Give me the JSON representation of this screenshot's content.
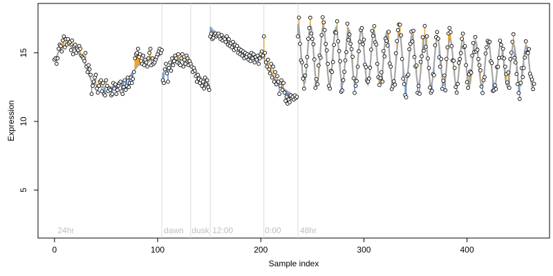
{
  "chart_data": {
    "type": "scatter",
    "title": "",
    "xlabel": "Sample index",
    "ylabel": "Expression",
    "xlim": [
      -16,
      480
    ],
    "ylim": [
      1.5,
      18.6
    ],
    "xticks": [
      0,
      100,
      200,
      300,
      400
    ],
    "yticks": [
      5,
      10,
      15
    ],
    "grid": false,
    "legend": "none",
    "colors": {
      "fit_line": "#a6a6a6",
      "residual_up": "#f5a623",
      "residual_down": "#6a97d8",
      "point_fill": "#ffffff",
      "point_stroke": "#000000",
      "separator": "#d9d9d9",
      "annotation": "#bfbfbf"
    },
    "segment_boundaries": [
      104,
      132,
      151,
      203,
      236
    ],
    "annotations": [
      {
        "x": 3,
        "text": "24hr"
      },
      {
        "x": 106,
        "text": "dawn"
      },
      {
        "x": 133,
        "text": "dusk"
      },
      {
        "x": 153,
        "text": "12:00"
      },
      {
        "x": 204,
        "text": "0:00"
      },
      {
        "x": 238,
        "text": "48hr"
      }
    ],
    "segments": [
      {
        "name": "24hr",
        "x_start": 0,
        "observed": [
          14.5,
          14.6,
          14.2,
          14.6,
          15.3,
          15.6,
          15.5,
          15.1,
          15.9,
          16.2,
          15.4,
          16.0,
          15.6,
          16.0,
          15.7,
          15.8,
          15.2,
          15.9,
          14.9,
          15.5,
          15.6,
          15.0,
          15.3,
          15.2,
          15.5,
          15.3,
          14.8,
          14.7,
          14.6,
          14.4,
          15.0,
          14.0,
          13.6,
          14.1,
          13.8,
          13.4,
          12.0,
          12.6,
          12.9,
          13.2,
          13.4,
          12.4,
          12.1,
          12.6,
          12.9,
          13.0,
          12.2,
          12.8,
          12.0,
          11.9,
          13.0,
          12.6,
          12.2,
          12.4,
          12.3,
          11.9,
          12.0,
          12.8,
          12.4,
          12.7,
          12.0,
          12.3,
          12.6,
          12.8,
          12.9,
          12.2,
          12.0,
          12.5,
          13.0,
          12.3,
          12.6,
          13.2,
          12.5,
          12.8,
          13.2,
          12.8,
          13.1,
          13.6,
          14.6,
          14.9,
          15.0,
          15.3,
          14.7,
          14.9,
          14.4,
          14.2,
          14.8,
          14.1,
          14.5,
          14.3,
          14.0,
          14.6,
          15.0,
          15.3,
          14.1,
          14.6,
          14.2,
          14.3,
          14.5,
          14.7,
          14.9,
          15.1,
          15.3,
          15.0,
          15.2
        ],
        "fitted": [
          14.5,
          14.6,
          14.7,
          14.9,
          15.1,
          15.2,
          15.3,
          15.3,
          15.4,
          15.5,
          15.5,
          15.6,
          15.6,
          15.6,
          15.6,
          15.5,
          15.5,
          15.4,
          15.4,
          15.3,
          15.3,
          15.2,
          15.1,
          15.0,
          14.9,
          14.8,
          14.7,
          14.6,
          14.5,
          14.3,
          14.1,
          13.9,
          13.7,
          13.5,
          13.3,
          13.1,
          12.9,
          12.8,
          12.8,
          12.7,
          12.7,
          12.6,
          12.6,
          12.6,
          12.5,
          12.5,
          12.5,
          12.5,
          12.5,
          12.5,
          12.5,
          12.5,
          12.5,
          12.5,
          12.5,
          12.5,
          12.5,
          12.6,
          12.6,
          12.6,
          12.6,
          12.7,
          12.7,
          12.7,
          12.8,
          12.8,
          12.9,
          12.9,
          13.0,
          13.0,
          13.1,
          13.1,
          13.2,
          13.3,
          13.4,
          13.5,
          13.6,
          13.7,
          13.8,
          13.9,
          14.0,
          14.1,
          14.1,
          14.2,
          14.2,
          14.2,
          14.3,
          14.3,
          14.3,
          14.3,
          14.4,
          14.4,
          14.4,
          14.5,
          14.5,
          14.5,
          14.5,
          14.6,
          14.6,
          14.7,
          14.7,
          14.8,
          14.8,
          14.9,
          14.9
        ]
      },
      {
        "name": "dawn",
        "x_start": 105,
        "observed": [
          13.0,
          12.8,
          13.8,
          14.2,
          13.5,
          12.9,
          13.9,
          14.3,
          13.7,
          14.6,
          14.1,
          14.4,
          14.8,
          14.6,
          14.3,
          14.9,
          14.2,
          14.1,
          14.6,
          14.9,
          14.0,
          14.5,
          14.2,
          14.8,
          14.6,
          14.1,
          14.4
        ],
        "fitted": [
          13.5,
          13.6,
          13.7,
          13.8,
          13.9,
          14.0,
          14.0,
          14.1,
          14.2,
          14.2,
          14.3,
          14.3,
          14.4,
          14.4,
          14.4,
          14.5,
          14.5,
          14.5,
          14.5,
          14.5,
          14.4,
          14.4,
          14.4,
          14.3,
          14.3,
          14.2,
          14.2
        ]
      },
      {
        "name": "dusk",
        "x_start": 132,
        "observed": [
          14.2,
          14.0,
          13.6,
          13.9,
          13.7,
          13.3,
          12.9,
          13.4,
          13.1,
          12.8,
          13.0,
          12.6,
          12.9,
          12.4,
          13.2,
          12.7,
          13.0,
          12.5,
          12.3
        ],
        "fitted": [
          14.1,
          14.0,
          13.9,
          13.8,
          13.7,
          13.6,
          13.5,
          13.4,
          13.3,
          13.3,
          13.2,
          13.1,
          13.0,
          13.0,
          12.9,
          12.9,
          12.8,
          12.8,
          12.7
        ]
      },
      {
        "name": "12:00",
        "x_start": 151,
        "observed": [
          16.2,
          16.4,
          16.0,
          16.1,
          16.3,
          16.4,
          16.2,
          16.3,
          16.4,
          16.2,
          16.0,
          16.3,
          15.9,
          16.1,
          16.0,
          15.8,
          16.2,
          15.6,
          16.0,
          15.5,
          15.7,
          15.4,
          15.8,
          15.2,
          15.6,
          15.3,
          15.5,
          15.0,
          15.3,
          14.9,
          15.2,
          14.8,
          15.1,
          14.6,
          15.0,
          14.7,
          14.9,
          14.5,
          14.8,
          14.4,
          15.0,
          14.6,
          14.9,
          14.3,
          14.7,
          14.5,
          14.8,
          14.2,
          14.6,
          14.9,
          15.1,
          14.8
        ],
        "fitted": [
          16.9,
          16.8,
          16.7,
          16.6,
          16.6,
          16.5,
          16.5,
          16.4,
          16.4,
          16.3,
          16.3,
          16.2,
          16.2,
          16.1,
          16.1,
          16.0,
          16.0,
          15.9,
          15.9,
          15.8,
          15.8,
          15.7,
          15.7,
          15.6,
          15.6,
          15.5,
          15.5,
          15.4,
          15.4,
          15.3,
          15.3,
          15.2,
          15.2,
          15.1,
          15.1,
          15.0,
          15.0,
          14.9,
          14.9,
          14.8,
          14.8,
          14.8,
          14.7,
          14.7,
          14.7,
          14.6,
          14.6,
          14.6,
          14.6,
          14.6,
          14.6,
          14.6
        ]
      },
      {
        "name": "0:00",
        "x_start": 203,
        "observed": [
          16.2,
          15.0,
          14.3,
          14.0,
          14.5,
          13.8,
          13.5,
          14.2,
          13.2,
          14.0,
          12.9,
          13.6,
          12.7,
          13.3,
          12.9,
          12.0,
          12.6,
          13.0,
          12.3,
          12.8,
          12.1,
          11.5,
          11.8,
          11.3,
          11.6,
          11.4,
          11.9,
          11.7,
          11.8,
          11.6,
          11.9,
          11.7,
          11.8
        ],
        "fitted": [
          14.6,
          14.4,
          14.2,
          14.1,
          13.9,
          13.8,
          13.6,
          13.5,
          13.4,
          13.3,
          13.2,
          13.1,
          13.0,
          12.9,
          12.8,
          12.7,
          12.6,
          12.5,
          12.5,
          12.4,
          12.3,
          12.3,
          12.2,
          12.2,
          12.1,
          12.1,
          12.0,
          12.0,
          11.9,
          11.9,
          11.9,
          11.8,
          11.8
        ]
      },
      {
        "name": "48hr",
        "x_start": 236,
        "amplitude": 2.2,
        "amplitude_end": 1.5,
        "period": 12.3,
        "mean": 14.9,
        "mean_end": 14.0,
        "x_end": 465,
        "seed": 7
      }
    ]
  }
}
